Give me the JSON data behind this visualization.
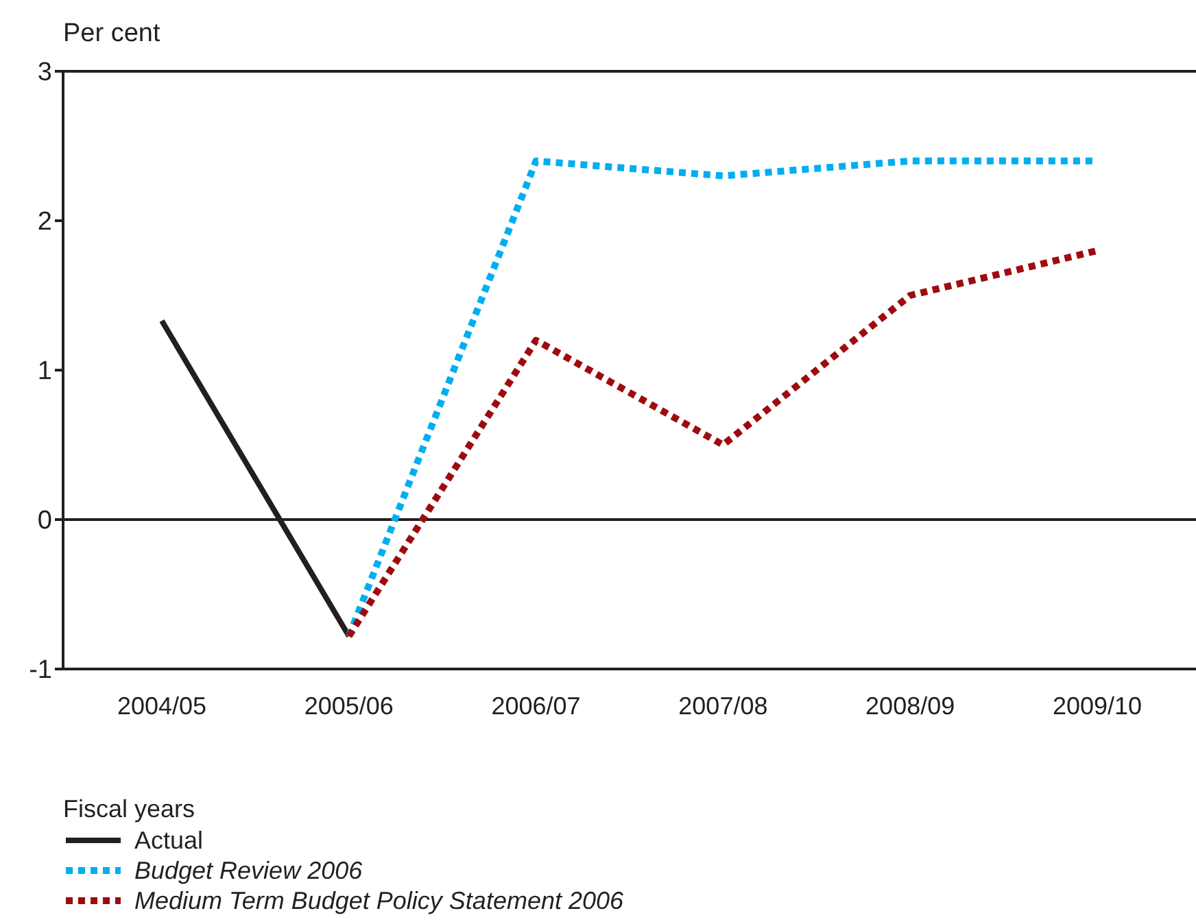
{
  "chart_data": {
    "type": "line",
    "ylabel": "Per cent",
    "xlabel": "Fiscal years",
    "categories": [
      "2004/05",
      "2005/06",
      "2006/07",
      "2007/08",
      "2008/09",
      "2009/10"
    ],
    "series": [
      {
        "name": "Actual",
        "color": "#231f20",
        "line_style": "solid",
        "values": [
          1.33,
          -0.78,
          null,
          null,
          null,
          null
        ]
      },
      {
        "name": "Budget Review 2006",
        "color": "#00aeef",
        "line_style": "dotted",
        "values": [
          null,
          -0.78,
          2.4,
          2.3,
          2.4,
          2.4
        ]
      },
      {
        "name": "Medium Term Budget Policy Statement 2006",
        "color": "#9e0b0f",
        "line_style": "dotted",
        "values": [
          null,
          -0.78,
          1.2,
          0.5,
          1.5,
          1.8
        ]
      }
    ],
    "ylim": [
      -1,
      3
    ],
    "yticks": [
      -1,
      0,
      1,
      2,
      3
    ],
    "ref_lines": [
      {
        "axis": "y",
        "value": 0,
        "color": "#231f20"
      }
    ],
    "grid": false,
    "legend": "bottom left",
    "marker": "none"
  }
}
